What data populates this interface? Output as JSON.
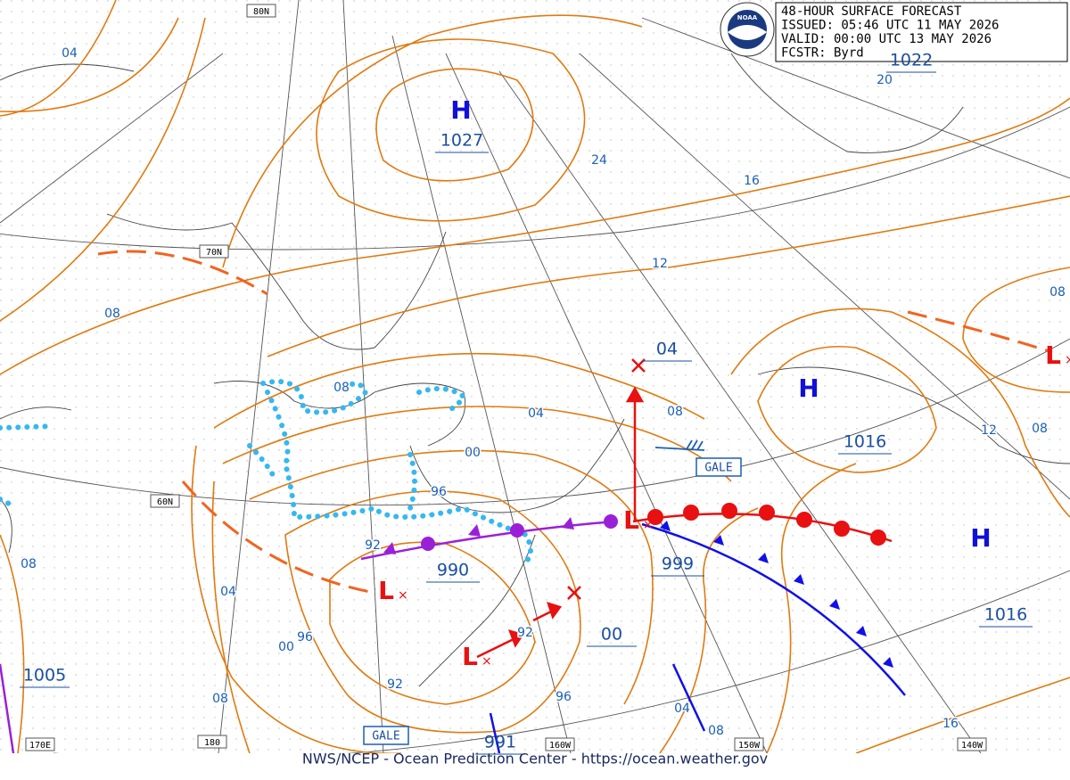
{
  "header": {
    "title": "48-HOUR SURFACE FORECAST",
    "issued": "ISSUED: 05:46 UTC 11 MAY 2026",
    "valid": "VALID:  00:00 UTC 13 MAY 2026",
    "forecaster": "FCSTR:  Byrd"
  },
  "logo": "NOAA",
  "grid_labels": [
    "80N",
    "70N",
    "60N",
    "170E",
    "180",
    "160W",
    "150W",
    "140W"
  ],
  "centers": [
    {
      "symbol": "H",
      "pressure": "1027"
    },
    {
      "symbol": "H",
      "pressure": "1016"
    },
    {
      "symbol": "H",
      "pressure": "1016"
    },
    {
      "symbol": "L",
      "pressure": "990"
    },
    {
      "symbol": "L",
      "pressure": "999"
    },
    {
      "symbol": "L"
    },
    {
      "symbol": "L"
    }
  ],
  "pressure_labels": [
    "1022",
    "04",
    "00",
    "991",
    "1005"
  ],
  "isobar_labels": [
    "04",
    "20",
    "24",
    "16",
    "12",
    "08",
    "08",
    "08",
    "04",
    "08",
    "00",
    "96",
    "92",
    "12",
    "08",
    "08",
    "04",
    "96",
    "00",
    "92",
    "92",
    "96",
    "08",
    "04",
    "08",
    "16"
  ],
  "gale_labels": [
    "GALE",
    "GALE"
  ],
  "footer": "NWS/NCEP - Ocean Prediction Center - https://ocean.weather.gov"
}
